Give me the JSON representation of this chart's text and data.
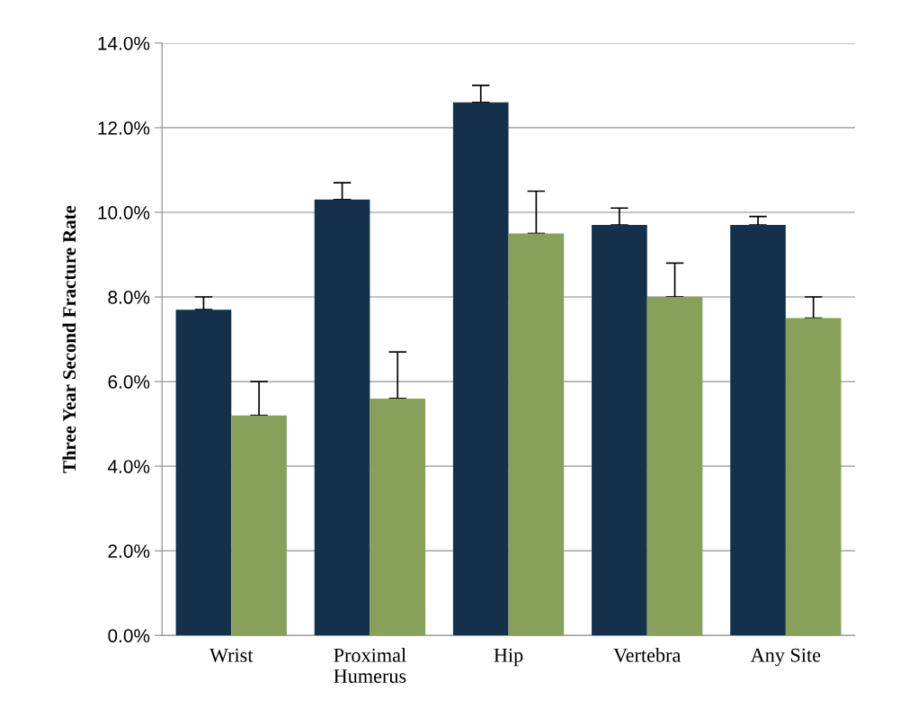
{
  "chart_data": {
    "type": "bar",
    "ylabel": "Three Year Second Fracture Rate",
    "categories": [
      "Wrist",
      "Proximal\nHumerus",
      "Hip",
      "Vertebra",
      "Any Site"
    ],
    "series": [
      {
        "color": "#14304b",
        "values": [
          7.7,
          10.3,
          12.6,
          9.7,
          9.7
        ],
        "errors": [
          [
            7.7,
            8.0
          ],
          [
            10.3,
            10.7
          ],
          [
            12.6,
            13.0
          ],
          [
            9.7,
            10.1
          ],
          [
            9.7,
            9.9
          ]
        ]
      },
      {
        "color": "#87a05a",
        "values": [
          5.2,
          5.6,
          9.5,
          8.0,
          7.5
        ],
        "errors": [
          [
            5.2,
            6.0
          ],
          [
            5.6,
            6.7
          ],
          [
            9.5,
            10.5
          ],
          [
            8.0,
            8.8
          ],
          [
            7.5,
            8.0
          ]
        ]
      }
    ],
    "ylim": [
      0,
      14
    ],
    "yticks": [
      {
        "value": 0,
        "label": "0.0%"
      },
      {
        "value": 2,
        "label": "2.0%"
      },
      {
        "value": 4,
        "label": "4.0%"
      },
      {
        "value": 6,
        "label": "6.0%"
      },
      {
        "value": 8,
        "label": "8.0%"
      },
      {
        "value": 10,
        "label": "10.0%"
      },
      {
        "value": 12,
        "label": "12.0%"
      },
      {
        "value": 14,
        "label": "14.0%"
      }
    ],
    "grid": "y"
  }
}
